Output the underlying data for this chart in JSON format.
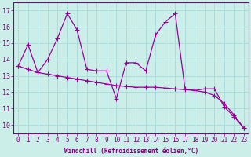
{
  "xlabel": "Windchill (Refroidissement éolien,°C)",
  "background_color": "#cceee8",
  "line_color": "#990099",
  "x_values": [
    0,
    1,
    2,
    3,
    4,
    5,
    6,
    7,
    8,
    9,
    10,
    11,
    12,
    13,
    14,
    15,
    16,
    17,
    18,
    19,
    20,
    21,
    22,
    23
  ],
  "y_curve": [
    13.6,
    14.9,
    13.2,
    14.0,
    15.3,
    16.8,
    15.8,
    13.4,
    13.3,
    13.3,
    11.6,
    13.8,
    13.8,
    13.3,
    15.5,
    16.3,
    16.8,
    12.2,
    12.1,
    12.2,
    12.2,
    11.1,
    10.5,
    9.8
  ],
  "y_trend": [
    13.6,
    13.4,
    13.2,
    13.1,
    13.0,
    12.9,
    12.8,
    12.7,
    12.6,
    12.5,
    12.4,
    12.35,
    12.3,
    12.3,
    12.3,
    12.25,
    12.2,
    12.15,
    12.1,
    12.0,
    11.8,
    11.3,
    10.6,
    9.8
  ],
  "ylim": [
    9.5,
    17.5
  ],
  "yticks": [
    10,
    11,
    12,
    13,
    14,
    15,
    16,
    17
  ],
  "xlim": [
    -0.5,
    23.5
  ],
  "grid_color": "#aadddd",
  "font_color": "#800080",
  "markersize": 2.5,
  "tick_fontsize": 5.5,
  "xlabel_fontsize": 5.5
}
